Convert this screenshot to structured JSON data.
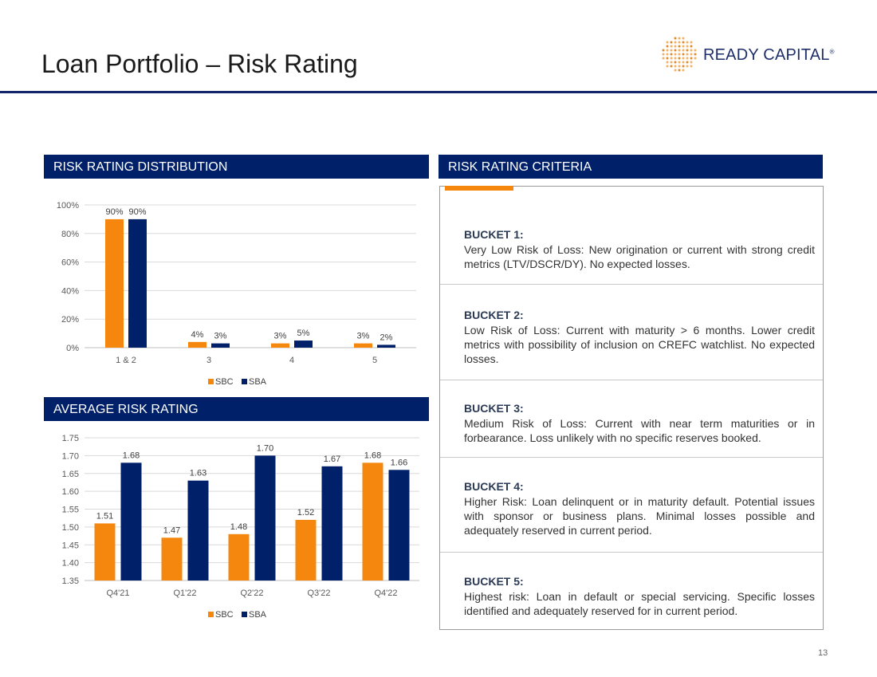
{
  "page": {
    "title": "Loan Portfolio – Risk Rating",
    "page_number": "13"
  },
  "logo": {
    "text": "READY CAPITAL",
    "mark": "®"
  },
  "colors": {
    "sbc": "#f5870f",
    "sba": "#002169",
    "header": "#002169",
    "rule": "#14266b"
  },
  "sections": {
    "distribution_header": "RISK RATING DISTRIBUTION",
    "average_header": "AVERAGE RISK RATING",
    "criteria_header": "RISK RATING CRITERIA"
  },
  "chart_data": [
    {
      "type": "bar",
      "categories": [
        "1 & 2",
        "3",
        "4",
        "5"
      ],
      "series": [
        {
          "name": "SBC",
          "values": [
            90,
            4,
            3,
            3
          ],
          "labels": [
            "90%",
            "4%",
            "3%",
            "3%"
          ]
        },
        {
          "name": "SBA",
          "values": [
            90,
            3,
            5,
            2
          ],
          "labels": [
            "90%",
            "3%",
            "5%",
            "2%"
          ]
        }
      ],
      "yticks": [
        "0%",
        "20%",
        "40%",
        "60%",
        "80%",
        "100%"
      ],
      "ylim": [
        0,
        100
      ],
      "grid": true,
      "legend": "bottom"
    },
    {
      "type": "bar",
      "categories": [
        "Q4'21",
        "Q1'22",
        "Q2'22",
        "Q3'22",
        "Q4'22"
      ],
      "series": [
        {
          "name": "SBC",
          "values": [
            1.51,
            1.47,
            1.48,
            1.52,
            1.68
          ],
          "labels": [
            "1.51",
            "1.47",
            "1.48",
            "1.52",
            "1.68"
          ]
        },
        {
          "name": "SBA",
          "values": [
            1.68,
            1.63,
            1.7,
            1.67,
            1.66
          ],
          "labels": [
            "1.68",
            "1.63",
            "1.70",
            "1.67",
            "1.66"
          ]
        }
      ],
      "yticks": [
        "1.35",
        "1.40",
        "1.45",
        "1.50",
        "1.55",
        "1.60",
        "1.65",
        "1.70",
        "1.75"
      ],
      "ylim": [
        1.35,
        1.75
      ],
      "grid": true,
      "legend": "bottom"
    }
  ],
  "criteria": [
    {
      "title": "BUCKET 1:",
      "text": "Very Low Risk of Loss: New origination or current with strong credit metrics (LTV/DSCR/DY). No expected losses."
    },
    {
      "title": "BUCKET 2:",
      "text": "Low Risk of Loss: Current with maturity > 6 months. Lower credit metrics with possibility of inclusion on CREFC watchlist. No expected losses."
    },
    {
      "title": "BUCKET 3:",
      "text": "Medium Risk of Loss: Current with near term maturities or in forbearance. Loss unlikely with no specific reserves booked."
    },
    {
      "title": "BUCKET 4:",
      "text": "Higher Risk: Loan delinquent or in maturity default. Potential issues with sponsor or business plans. Minimal losses possible and adequately reserved in current period."
    },
    {
      "title": "BUCKET 5:",
      "text": "Highest risk: Loan in default or special servicing. Specific losses identified and adequately reserved for in current period."
    }
  ]
}
